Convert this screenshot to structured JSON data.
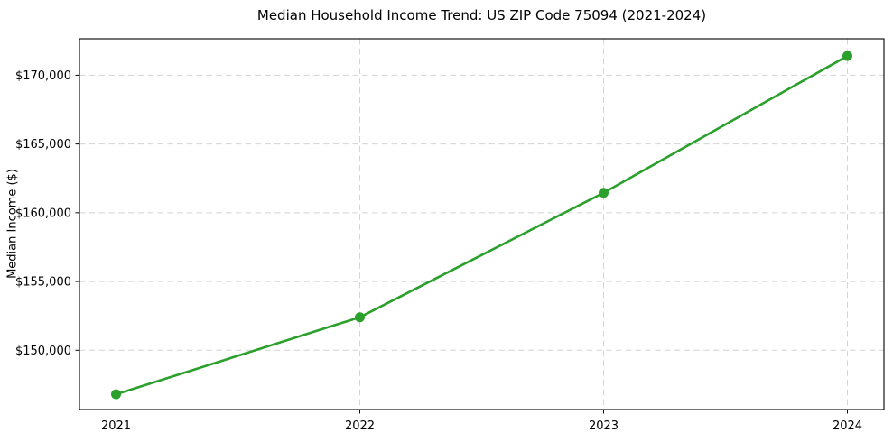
{
  "chart_data": {
    "type": "line",
    "title": "Median Household Income Trend: US ZIP Code 75094 (2021-2024)",
    "xlabel": "",
    "ylabel": "Median Income ($)",
    "categories": [
      "2021",
      "2022",
      "2023",
      "2024"
    ],
    "x": [
      2021,
      2022,
      2023,
      2024
    ],
    "series": [
      {
        "name": "Median Household Income",
        "values": [
          146800,
          152400,
          161450,
          171400
        ],
        "color": "#2ca02c",
        "marker": "circle",
        "line_style": "solid"
      }
    ],
    "x_tick_labels": [
      "2021",
      "2022",
      "2023",
      "2024"
    ],
    "y_ticks": [
      150000,
      155000,
      160000,
      165000,
      170000
    ],
    "y_tick_labels": [
      "$150,000",
      "$155,000",
      "$160,000",
      "$165,000",
      "$170,000"
    ],
    "xlim": [
      2020.85,
      2024.15
    ],
    "ylim": [
      145690,
      172650
    ],
    "grid": "on",
    "grid_style": "dashed",
    "legend": "none",
    "colors": {
      "line": "#2ca02c",
      "grid": "#d4d4d4",
      "spine": "#000000",
      "text": "#1a1a1a",
      "background": "#ffffff"
    }
  }
}
